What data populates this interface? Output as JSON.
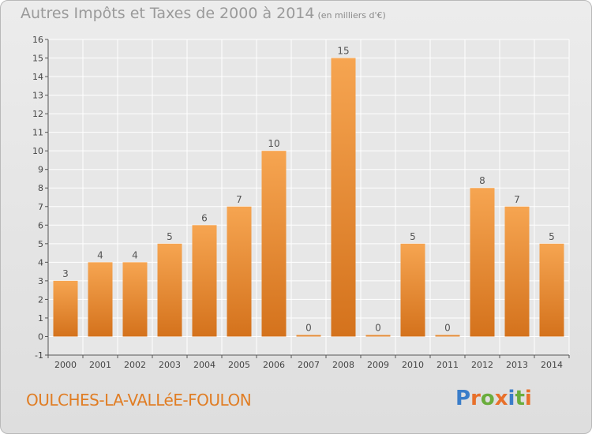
{
  "header": {
    "title": "Autres Impôts et Taxes de 2000 à 2014",
    "unit": "(en milliers d'€)"
  },
  "footer": {
    "commune": "OULCHES-LA-VALLéE-FOULON",
    "logo": "Proxiti"
  },
  "colors": {
    "bar_top": "#f6a551",
    "bar_bottom": "#d4721c",
    "commune_text": "#e07d24",
    "logo_letters": [
      "#3a7dc9",
      "#e8702a",
      "#6aad3c",
      "#e8702a",
      "#3a7dc9",
      "#6aad3c",
      "#e8702a"
    ]
  },
  "chart_data": {
    "type": "bar",
    "title": "Autres Impôts et Taxes de 2000 à 2014",
    "ylabel": "",
    "xlabel": "",
    "categories": [
      "2000",
      "2001",
      "2002",
      "2003",
      "2004",
      "2005",
      "2006",
      "2007",
      "2008",
      "2009",
      "2010",
      "2011",
      "2012",
      "2013",
      "2014"
    ],
    "values": [
      3,
      4,
      4,
      5,
      6,
      7,
      10,
      0,
      15,
      0,
      5,
      0,
      8,
      7,
      5
    ],
    "ylim": [
      -1,
      16
    ],
    "yticks": [
      -1,
      0,
      1,
      2,
      3,
      4,
      5,
      6,
      7,
      8,
      9,
      10,
      11,
      12,
      13,
      14,
      15,
      16
    ],
    "grid": true
  }
}
